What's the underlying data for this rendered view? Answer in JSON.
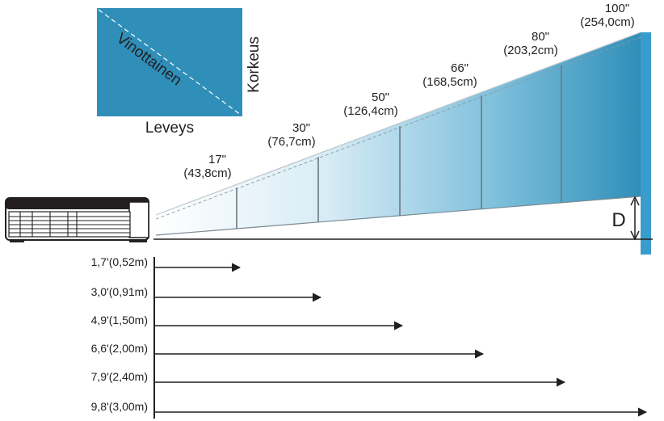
{
  "screen_diagram": {
    "diagonal_label": "Vinottainen",
    "height_label": "Korkeus",
    "width_label": "Leveys",
    "fill_color": "#2f8fb9"
  },
  "screen_sizes": [
    {
      "inches": "17\"",
      "cm": "(43,8cm)"
    },
    {
      "inches": "30\"",
      "cm": "(76,7cm)"
    },
    {
      "inches": "50\"",
      "cm": "(126,4cm)"
    },
    {
      "inches": "66\"",
      "cm": "(168,5cm)"
    },
    {
      "inches": "80\"",
      "cm": "(203,2cm)"
    },
    {
      "inches": "100\"",
      "cm": "(254,0cm)"
    }
  ],
  "offset_label": "D",
  "distances": [
    "1,7'(0,52m)",
    "3,0'(0,91m)",
    "4,9'(1,50m)",
    "6,6'(2,00m)",
    "7,9'(2,40m)",
    "9,8'(3,00m)"
  ],
  "colors": {
    "wall": "#3a9ccc",
    "screen_far": "#2f8fb9",
    "screen_near": "#ffffff",
    "ink": "#231f20"
  }
}
